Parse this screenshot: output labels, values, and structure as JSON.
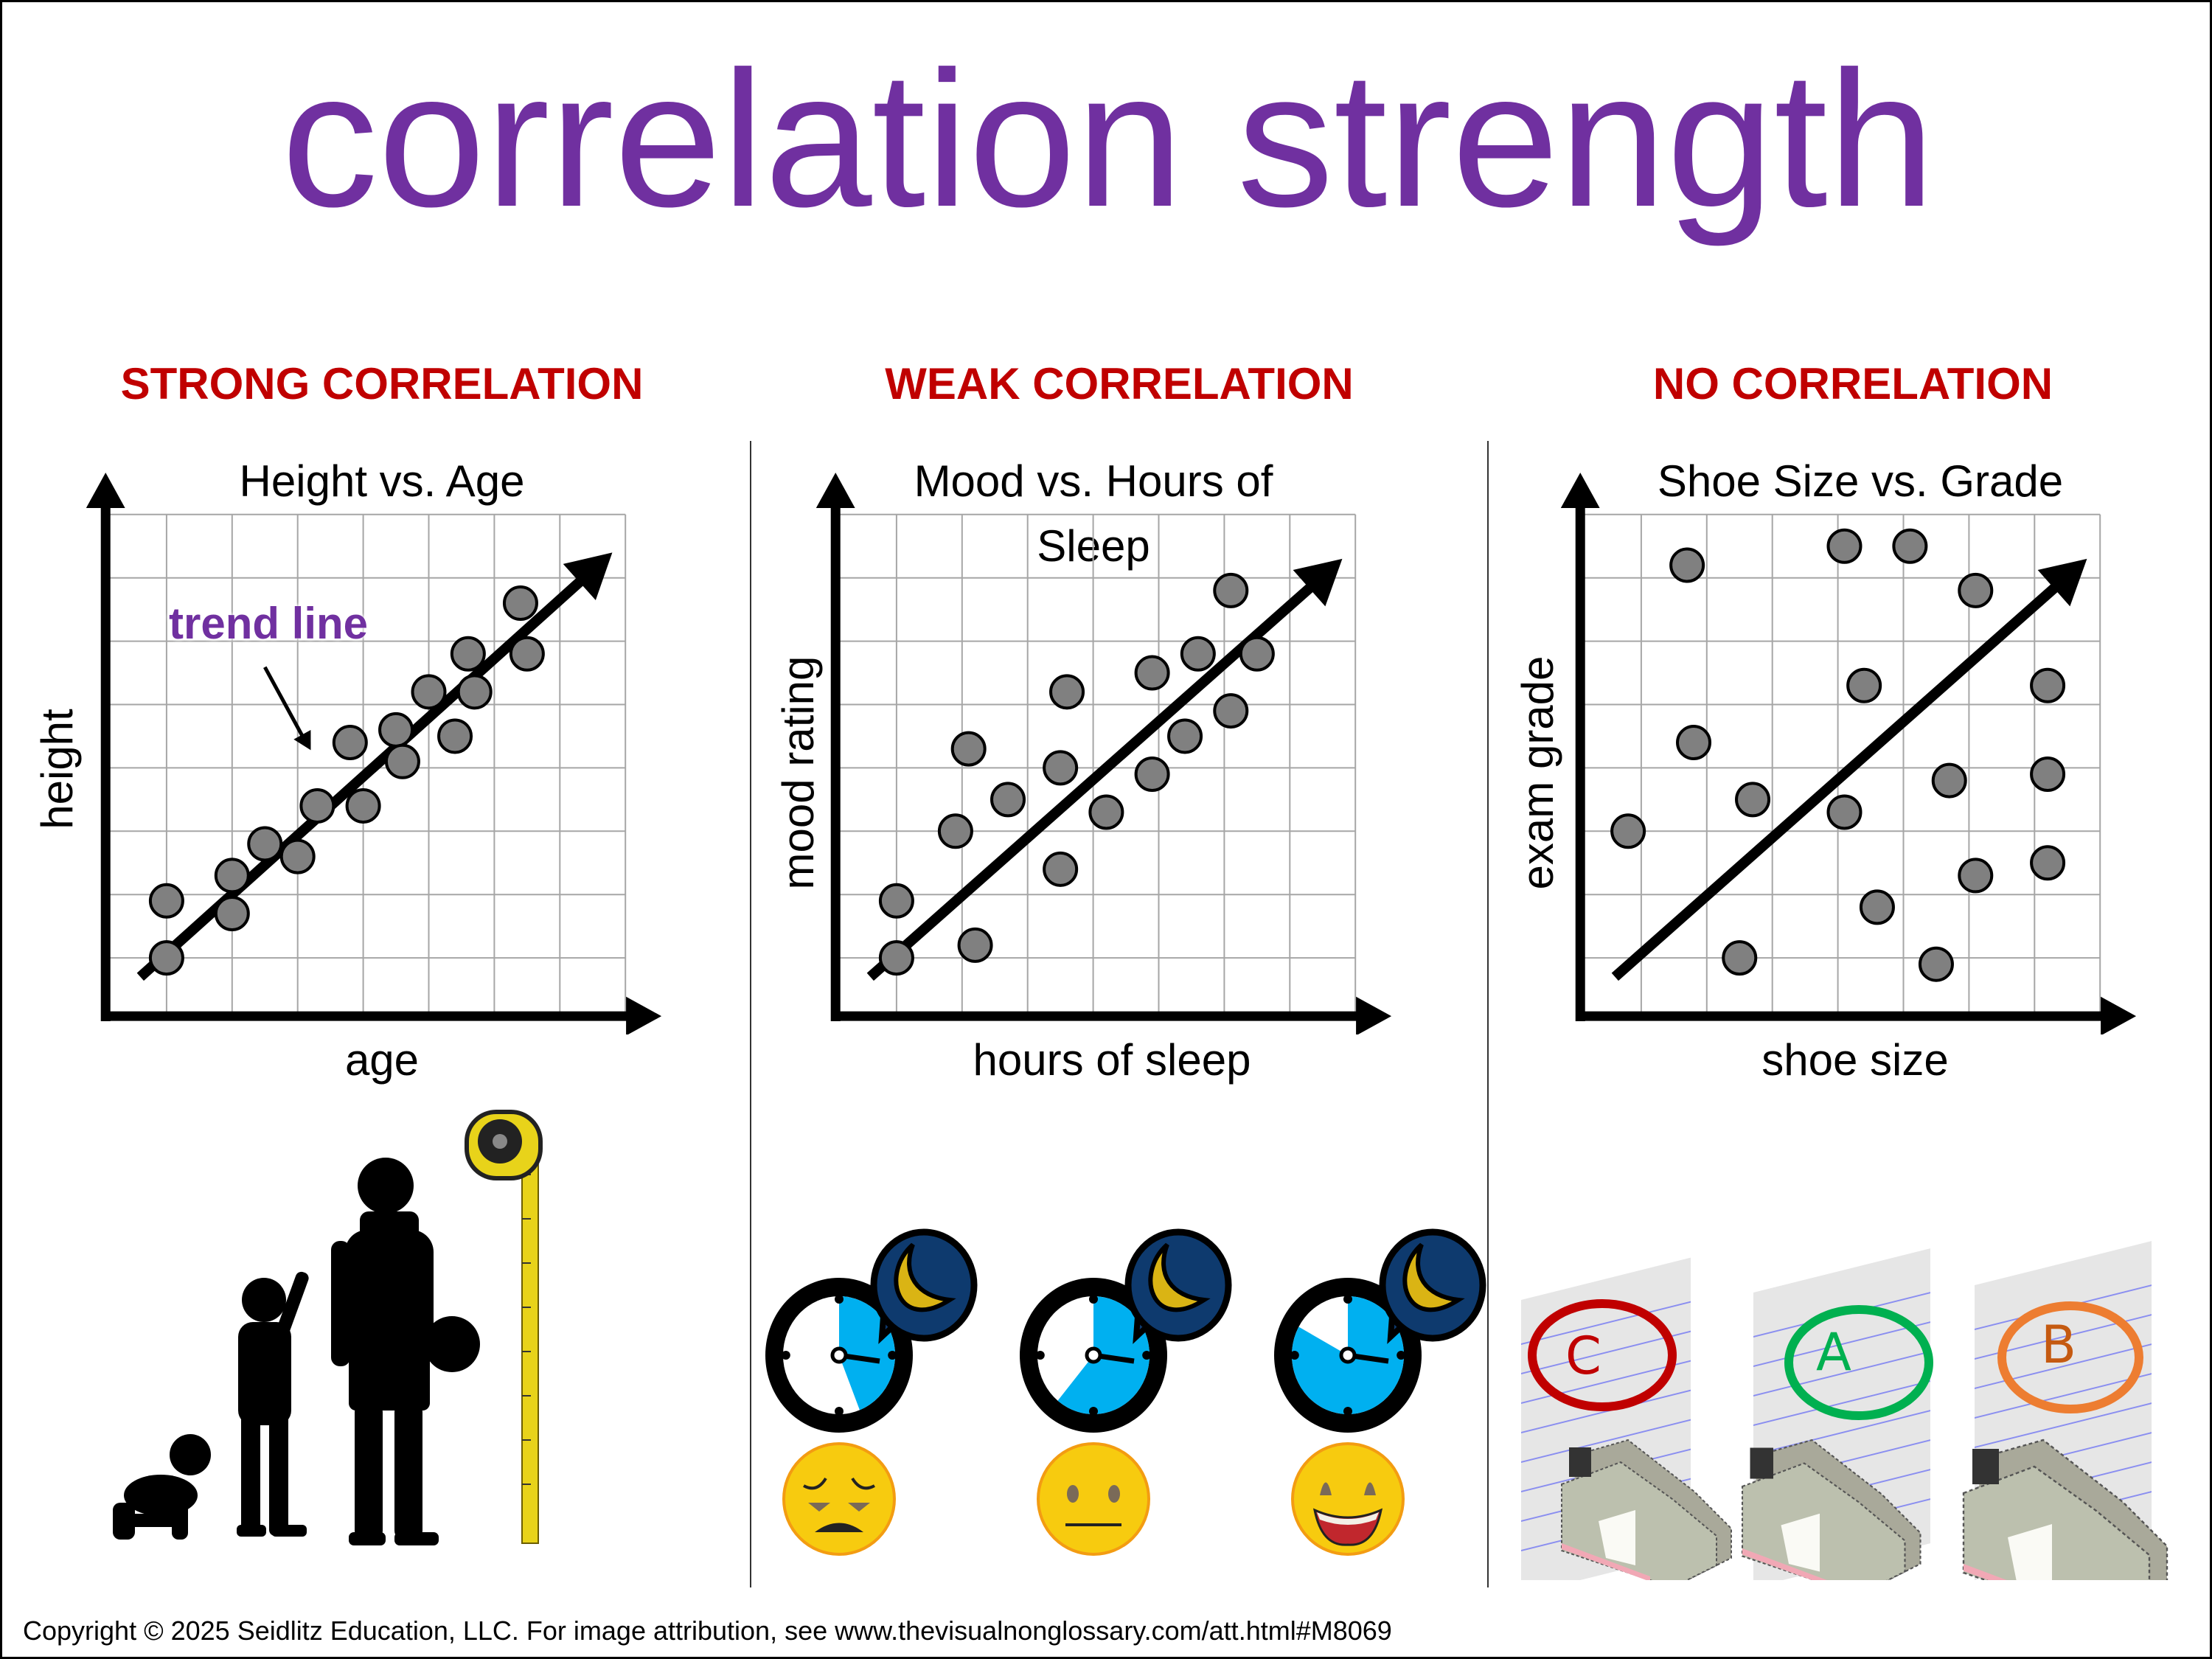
{
  "title": "correlation strength",
  "colors": {
    "title": "#7030A0",
    "heading": "#C00000",
    "dot": "#808080",
    "grid": "#A6A6A6"
  },
  "sections": [
    {
      "heading": "STRONG CORRELATION"
    },
    {
      "heading": "WEAK CORRELATION"
    },
    {
      "heading": "NO CORRELATION"
    }
  ],
  "chart_data": [
    {
      "type": "scatter",
      "title": "Height vs. Age",
      "xlabel": "age",
      "ylabel": "height",
      "xlim": [
        0,
        8
      ],
      "ylim": [
        0,
        8
      ],
      "grid": true,
      "annotation": "trend line",
      "points": [
        [
          1.0,
          1.9
        ],
        [
          1.0,
          1.0
        ],
        [
          2.0,
          2.3
        ],
        [
          2.0,
          1.7
        ],
        [
          2.5,
          2.8
        ],
        [
          3.0,
          2.6
        ],
        [
          3.3,
          3.4
        ],
        [
          3.8,
          4.4
        ],
        [
          4.0,
          3.4
        ],
        [
          4.5,
          4.6
        ],
        [
          4.6,
          4.1
        ],
        [
          5.0,
          5.2
        ],
        [
          5.4,
          4.5
        ],
        [
          5.6,
          5.8
        ],
        [
          5.7,
          5.2
        ],
        [
          6.4,
          6.6
        ],
        [
          6.5,
          5.8
        ]
      ],
      "trend": [
        [
          0.6,
          0.7
        ],
        [
          7.8,
          7.4
        ]
      ]
    },
    {
      "type": "scatter",
      "title_lines": [
        "Mood vs. Hours of",
        "Sleep"
      ],
      "xlabel": "hours of sleep",
      "ylabel": "mood rating",
      "xlim": [
        0,
        8
      ],
      "ylim": [
        0,
        8
      ],
      "grid": true,
      "points": [
        [
          1.0,
          1.9
        ],
        [
          1.0,
          1.0
        ],
        [
          2.2,
          1.2
        ],
        [
          1.9,
          3.0
        ],
        [
          2.1,
          4.3
        ],
        [
          2.7,
          3.5
        ],
        [
          3.5,
          2.4
        ],
        [
          3.5,
          4.0
        ],
        [
          3.6,
          5.2
        ],
        [
          4.2,
          3.3
        ],
        [
          4.9,
          5.5
        ],
        [
          4.9,
          3.9
        ],
        [
          5.4,
          4.5
        ],
        [
          5.6,
          5.8
        ],
        [
          6.1,
          4.9
        ],
        [
          6.1,
          6.8
        ],
        [
          6.5,
          5.8
        ]
      ],
      "trend": [
        [
          0.6,
          0.7
        ],
        [
          7.8,
          7.3
        ]
      ]
    },
    {
      "type": "scatter",
      "title": "Shoe Size vs. Grade",
      "xlabel": "shoe size",
      "ylabel": "exam grade",
      "xlim": [
        0,
        8
      ],
      "ylim": [
        0,
        8
      ],
      "grid": true,
      "points": [
        [
          0.8,
          3.0
        ],
        [
          1.7,
          7.2
        ],
        [
          1.8,
          4.4
        ],
        [
          2.5,
          1.0
        ],
        [
          2.7,
          3.5
        ],
        [
          4.1,
          7.5
        ],
        [
          4.1,
          3.3
        ],
        [
          4.4,
          5.3
        ],
        [
          4.6,
          1.8
        ],
        [
          5.1,
          7.5
        ],
        [
          5.5,
          0.9
        ],
        [
          5.7,
          3.8
        ],
        [
          6.1,
          6.8
        ],
        [
          6.1,
          2.3
        ],
        [
          7.2,
          5.3
        ],
        [
          7.2,
          3.9
        ],
        [
          7.2,
          2.5
        ]
      ],
      "trend": [
        [
          0.6,
          0.7
        ],
        [
          7.8,
          7.3
        ]
      ]
    }
  ],
  "illustrations": {
    "clocks": [
      {
        "fill_fraction": 0.44,
        "mood": "sad"
      },
      {
        "fill_fraction": 0.61,
        "mood": "neutral"
      },
      {
        "fill_fraction": 0.83,
        "mood": "happy"
      }
    ],
    "grades": [
      {
        "letter": "C",
        "color": "#C00000"
      },
      {
        "letter": "A",
        "color": "#00B050"
      },
      {
        "letter": "B",
        "color": "#ED7D31"
      }
    ]
  },
  "footer": "Copyright © 2025 Seidlitz Education, LLC.  For image attribution, see www.thevisualnonglossary.com/att.html#M8069"
}
